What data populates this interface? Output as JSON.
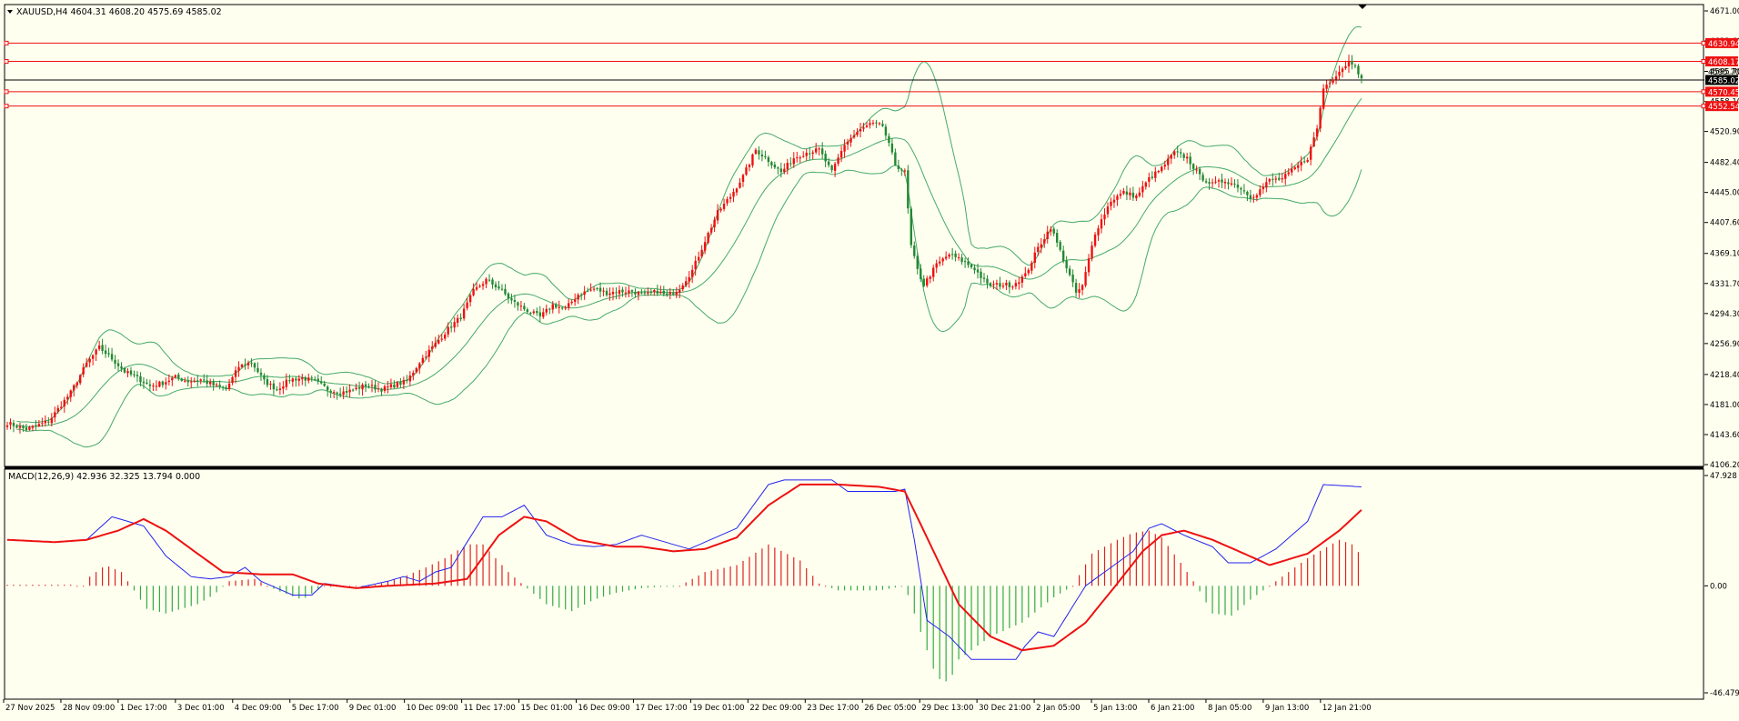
{
  "header": {
    "symbol_line": "XAUUSD,H4  4604.31 4608.20 4575.69 4585.02",
    "macd_line": "MACD(12,26,9) 42.936 32.325 13.794 0.000"
  },
  "colors": {
    "background": "#fffff0",
    "bull": "#ee1111",
    "bear": "#228833",
    "bollinger": "#44aa66",
    "macd_main": "#2222ee",
    "macd_signal": "#ee1111",
    "hist_pos": "#dd2222",
    "hist_neg": "#33aa44",
    "level_line": "#ee1111",
    "price_line": "#000000"
  },
  "chart_data": [
    {
      "type": "candlestick",
      "symbol": "XAUUSD",
      "timeframe": "H4",
      "ylim": [
        4106.2,
        4671.0
      ],
      "y_ticks": [
        "4671.00",
        "4633.60",
        "4595.70",
        "4558.10",
        "4520.90",
        "4482.40",
        "4445.00",
        "4407.60",
        "4369.10",
        "4331.70",
        "4294.30",
        "4256.90",
        "4218.40",
        "4181.00",
        "4143.60",
        "4106.20"
      ],
      "x_ticks": [
        "27 Nov 2025",
        "28 Nov 09:00",
        "1 Dec 17:00",
        "3 Dec 01:00",
        "4 Dec 09:00",
        "5 Dec 17:00",
        "9 Dec 01:00",
        "10 Dec 09:00",
        "11 Dec 17:00",
        "15 Dec 01:00",
        "16 Dec 09:00",
        "17 Dec 17:00",
        "19 Dec 01:00",
        "22 Dec 09:00",
        "23 Dec 17:00",
        "26 Dec 05:00",
        "29 Dec 13:00",
        "30 Dec 21:00",
        "2 Jan 05:00",
        "5 Jan 13:00",
        "6 Jan 21:00",
        "8 Jan 05:00",
        "9 Jan 13:00",
        "12 Jan 21:00"
      ],
      "price_labels": [
        {
          "text": "4630.94",
          "value": 4630.94,
          "style": "red"
        },
        {
          "text": "4608.17",
          "value": 4608.17,
          "style": "red"
        },
        {
          "text": "4595.70",
          "value": 4595.7,
          "style": "plain"
        },
        {
          "text": "4585.02",
          "value": 4585.02,
          "style": "black"
        },
        {
          "text": "4570.45",
          "value": 4570.45,
          "style": "red"
        },
        {
          "text": "4552.54",
          "value": 4552.54,
          "style": "red"
        }
      ],
      "levels": [
        4630.94,
        4608.17,
        4570.45,
        4552.54
      ],
      "current_price": 4585.02,
      "close_path": [
        [
          0,
          4158
        ],
        [
          6,
          4150
        ],
        [
          13,
          4160
        ],
        [
          20,
          4196
        ],
        [
          25,
          4232
        ],
        [
          29,
          4252
        ],
        [
          33,
          4238
        ],
        [
          37,
          4222
        ],
        [
          41,
          4214
        ],
        [
          45,
          4204
        ],
        [
          49,
          4208
        ],
        [
          53,
          4215
        ],
        [
          57,
          4210
        ],
        [
          61,
          4212
        ],
        [
          65,
          4205
        ],
        [
          69,
          4200
        ],
        [
          73,
          4228
        ],
        [
          77,
          4234
        ],
        [
          81,
          4210
        ],
        [
          85,
          4200
        ],
        [
          89,
          4212
        ],
        [
          93,
          4214
        ],
        [
          97,
          4210
        ],
        [
          101,
          4200
        ],
        [
          105,
          4196
        ],
        [
          108,
          4198
        ],
        [
          113,
          4205
        ],
        [
          118,
          4200
        ],
        [
          122,
          4205
        ],
        [
          126,
          4210
        ],
        [
          130,
          4234
        ],
        [
          134,
          4252
        ],
        [
          139,
          4275
        ],
        [
          143,
          4290
        ],
        [
          147,
          4322
        ],
        [
          151,
          4336
        ],
        [
          155,
          4326
        ],
        [
          159,
          4310
        ],
        [
          163,
          4300
        ],
        [
          168,
          4290
        ],
        [
          172,
          4305
        ],
        [
          176,
          4300
        ],
        [
          180,
          4318
        ],
        [
          185,
          4325
        ],
        [
          189,
          4320
        ],
        [
          193,
          4322
        ],
        [
          197,
          4322
        ],
        [
          201,
          4317
        ],
        [
          205,
          4322
        ],
        [
          208,
          4316
        ],
        [
          212,
          4326
        ],
        [
          216,
          4348
        ],
        [
          220,
          4385
        ],
        [
          224,
          4420
        ],
        [
          228,
          4440
        ],
        [
          232,
          4465
        ],
        [
          236,
          4498
        ],
        [
          240,
          4485
        ],
        [
          244,
          4470
        ],
        [
          248,
          4488
        ],
        [
          252,
          4495
        ],
        [
          256,
          4498
        ],
        [
          260,
          4470
        ],
        [
          264,
          4505
        ],
        [
          268,
          4520
        ],
        [
          272,
          4530
        ],
        [
          276,
          4528
        ],
        [
          280,
          4480
        ],
        [
          283,
          4470
        ],
        [
          285,
          4378
        ],
        [
          287,
          4348
        ],
        [
          289,
          4330
        ],
        [
          293,
          4355
        ],
        [
          297,
          4368
        ],
        [
          301,
          4360
        ],
        [
          305,
          4350
        ],
        [
          309,
          4330
        ],
        [
          313,
          4330
        ],
        [
          317,
          4330
        ],
        [
          321,
          4342
        ],
        [
          325,
          4376
        ],
        [
          329,
          4402
        ],
        [
          333,
          4362
        ],
        [
          337,
          4320
        ],
        [
          339,
          4328
        ],
        [
          343,
          4395
        ],
        [
          348,
          4435
        ],
        [
          352,
          4445
        ],
        [
          356,
          4440
        ],
        [
          360,
          4462
        ],
        [
          364,
          4475
        ],
        [
          368,
          4495
        ],
        [
          372,
          4488
        ],
        [
          376,
          4465
        ],
        [
          380,
          4455
        ],
        [
          384,
          4460
        ],
        [
          388,
          4453
        ],
        [
          392,
          4440
        ],
        [
          394,
          4444
        ],
        [
          398,
          4460
        ],
        [
          402,
          4462
        ],
        [
          406,
          4475
        ],
        [
          410,
          4488
        ],
        [
          413,
          4525
        ],
        [
          415,
          4575
        ],
        [
          419,
          4592
        ],
        [
          421,
          4600
        ],
        [
          423,
          4608
        ],
        [
          425,
          4605
        ],
        [
          427,
          4585
        ]
      ]
    },
    {
      "type": "line",
      "title": "MACD(12,26,9)",
      "ylim": [
        -46.479,
        47.928
      ],
      "y_ticks": [
        "47.928",
        "0.00",
        "-46.479"
      ],
      "main_path": [
        [
          0,
          20
        ],
        [
          15,
          19
        ],
        [
          25,
          20
        ],
        [
          33,
          30
        ],
        [
          43,
          26
        ],
        [
          50,
          13
        ],
        [
          58,
          4
        ],
        [
          64,
          3
        ],
        [
          70,
          4
        ],
        [
          75,
          8
        ],
        [
          80,
          2
        ],
        [
          90,
          -4
        ],
        [
          96,
          -4
        ],
        [
          100,
          1
        ],
        [
          110,
          -1
        ],
        [
          120,
          2
        ],
        [
          125,
          4
        ],
        [
          130,
          2
        ],
        [
          135,
          6
        ],
        [
          140,
          8
        ],
        [
          150,
          30
        ],
        [
          156,
          30
        ],
        [
          163,
          35
        ],
        [
          170,
          22
        ],
        [
          178,
          18
        ],
        [
          185,
          17
        ],
        [
          192,
          18
        ],
        [
          200,
          22
        ],
        [
          215,
          16
        ],
        [
          230,
          25
        ],
        [
          240,
          44
        ],
        [
          245,
          46
        ],
        [
          260,
          46
        ],
        [
          265,
          41
        ],
        [
          280,
          41
        ],
        [
          283,
          42
        ],
        [
          286,
          20
        ],
        [
          290,
          -15
        ],
        [
          297,
          -22
        ],
        [
          304,
          -32
        ],
        [
          310,
          -32
        ],
        [
          318,
          -32
        ],
        [
          321,
          -26
        ],
        [
          325,
          -20
        ],
        [
          330,
          -22
        ],
        [
          340,
          0
        ],
        [
          355,
          15
        ],
        [
          360,
          25
        ],
        [
          364,
          27
        ],
        [
          371,
          22
        ],
        [
          380,
          17
        ],
        [
          385,
          10
        ],
        [
          392,
          10
        ],
        [
          400,
          16
        ],
        [
          410,
          28
        ],
        [
          415,
          44
        ],
        [
          427,
          43
        ]
      ],
      "signal_path": [
        [
          0,
          20
        ],
        [
          15,
          19
        ],
        [
          25,
          20
        ],
        [
          35,
          24
        ],
        [
          43,
          29
        ],
        [
          50,
          24
        ],
        [
          58,
          16
        ],
        [
          68,
          6
        ],
        [
          80,
          5
        ],
        [
          90,
          5
        ],
        [
          98,
          1
        ],
        [
          110,
          -1
        ],
        [
          120,
          0
        ],
        [
          135,
          1
        ],
        [
          145,
          3
        ],
        [
          155,
          22
        ],
        [
          163,
          30
        ],
        [
          170,
          28
        ],
        [
          180,
          20
        ],
        [
          192,
          17
        ],
        [
          200,
          17
        ],
        [
          210,
          15
        ],
        [
          220,
          16
        ],
        [
          230,
          21
        ],
        [
          240,
          35
        ],
        [
          250,
          44
        ],
        [
          262,
          44
        ],
        [
          275,
          43
        ],
        [
          283,
          41
        ],
        [
          290,
          21
        ],
        [
          300,
          -8
        ],
        [
          310,
          -22
        ],
        [
          320,
          -28
        ],
        [
          330,
          -26
        ],
        [
          340,
          -16
        ],
        [
          350,
          1
        ],
        [
          358,
          15
        ],
        [
          364,
          22
        ],
        [
          371,
          24
        ],
        [
          380,
          20
        ],
        [
          390,
          14
        ],
        [
          398,
          9
        ],
        [
          410,
          14
        ],
        [
          420,
          24
        ],
        [
          427,
          33
        ]
      ],
      "histogram_anchors": [
        [
          0,
          0.5
        ],
        [
          20,
          0.5
        ],
        [
          24,
          0
        ],
        [
          26,
          4
        ],
        [
          31,
          9
        ],
        [
          36,
          6
        ],
        [
          40,
          -2
        ],
        [
          44,
          -10
        ],
        [
          50,
          -12
        ],
        [
          55,
          -10
        ],
        [
          60,
          -8
        ],
        [
          65,
          -4
        ],
        [
          70,
          2
        ],
        [
          78,
          3
        ],
        [
          85,
          -2
        ],
        [
          93,
          -6
        ],
        [
          100,
          0
        ],
        [
          115,
          0
        ],
        [
          120,
          2
        ],
        [
          125,
          4
        ],
        [
          132,
          8
        ],
        [
          138,
          12
        ],
        [
          145,
          18
        ],
        [
          150,
          18
        ],
        [
          158,
          6
        ],
        [
          163,
          0
        ],
        [
          170,
          -8
        ],
        [
          178,
          -11
        ],
        [
          185,
          -6
        ],
        [
          192,
          -3
        ],
        [
          200,
          -1
        ],
        [
          212,
          0
        ],
        [
          220,
          6
        ],
        [
          230,
          9
        ],
        [
          240,
          18
        ],
        [
          250,
          11
        ],
        [
          256,
          1
        ],
        [
          262,
          -2
        ],
        [
          275,
          -2
        ],
        [
          283,
          0
        ],
        [
          287,
          -16
        ],
        [
          293,
          -40
        ],
        [
          297,
          -42
        ],
        [
          300,
          -32
        ],
        [
          310,
          -22
        ],
        [
          320,
          -16
        ],
        [
          330,
          -5
        ],
        [
          336,
          0
        ],
        [
          342,
          14
        ],
        [
          350,
          20
        ],
        [
          355,
          23
        ],
        [
          360,
          24
        ],
        [
          364,
          21
        ],
        [
          370,
          10
        ],
        [
          375,
          0
        ],
        [
          380,
          -12
        ],
        [
          386,
          -13
        ],
        [
          392,
          -6
        ],
        [
          398,
          0
        ],
        [
          402,
          4
        ],
        [
          410,
          12
        ],
        [
          415,
          16
        ],
        [
          420,
          20
        ],
        [
          424,
          18
        ],
        [
          427,
          13
        ]
      ]
    }
  ]
}
